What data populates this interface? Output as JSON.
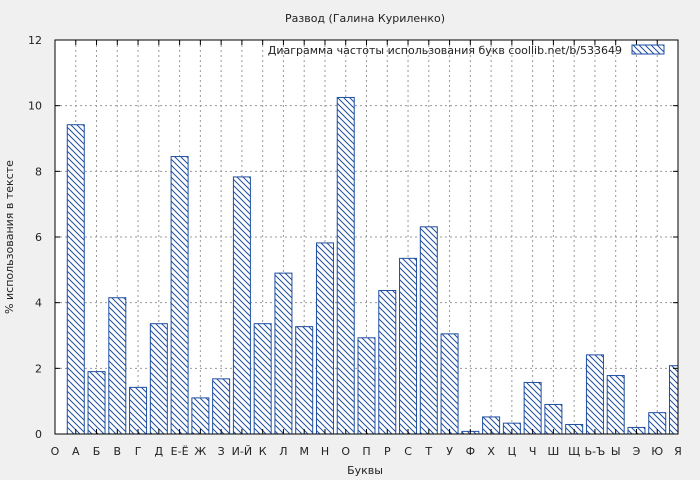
{
  "chart_data": {
    "type": "bar",
    "title": "Развод (Галина Куриленко)",
    "xlabel": "Буквы",
    "ylabel": "% использования в тексте",
    "ylim": [
      0,
      12
    ],
    "yticks": [
      0,
      2,
      4,
      6,
      8,
      10,
      12
    ],
    "grid": true,
    "legend_position": "top-right",
    "categories": [
      "О",
      "А",
      "Б",
      "В",
      "Г",
      "Д",
      "Е-Ё",
      "Ж",
      "З",
      "И-Й",
      "К",
      "Л",
      "М",
      "Н",
      "О",
      "П",
      "Р",
      "С",
      "Т",
      "У",
      "Ф",
      "Х",
      "Ц",
      "Ч",
      "Ш",
      "Щ",
      "Ь-Ъ",
      "Ы",
      "Э",
      "Ю",
      "Я"
    ],
    "series": [
      {
        "name": "Диаграмма частоты использования букв  coollib.net/b/533649",
        "values": [
          0,
          9.42,
          1.9,
          4.15,
          1.42,
          3.36,
          8.45,
          1.1,
          1.68,
          7.83,
          3.36,
          4.9,
          3.27,
          5.82,
          10.25,
          2.93,
          4.37,
          5.35,
          6.31,
          3.05,
          0.08,
          0.52,
          0.33,
          1.57,
          0.9,
          0.29,
          2.41,
          1.78,
          0.2,
          0.65,
          2.08
        ]
      }
    ],
    "colors": {
      "bar_stroke": "#1f4fa0",
      "hatch": "#1f4fa0",
      "grid": "#999999",
      "axis": "#000000"
    }
  }
}
